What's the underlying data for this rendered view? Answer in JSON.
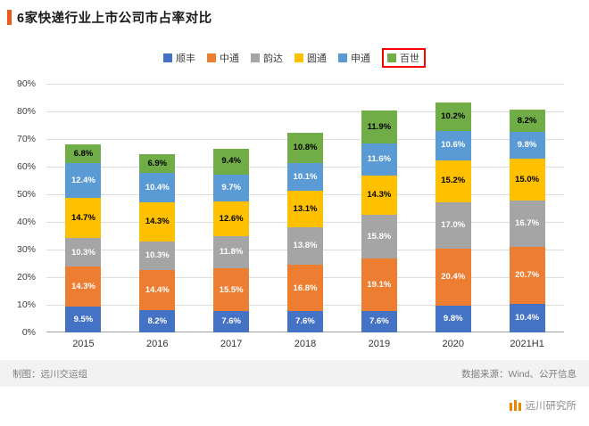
{
  "page": {
    "title": "6家快递行业上市公司市占率对比",
    "accent_color": "#ED5A1C",
    "footer_left": "制图：远川交运组",
    "footer_right": "数据来源：Wind、公开信息",
    "brand_name": "远川研究所",
    "brand_color": "#F08300"
  },
  "chart_data": {
    "type": "bar",
    "stacked": true,
    "title": "6家快递行业上市公司市占率对比",
    "categories": [
      "2015",
      "2016",
      "2017",
      "2018",
      "2019",
      "2020",
      "2021H1"
    ],
    "series": [
      {
        "name": "顺丰",
        "color": "#4472C4",
        "label_color": "#FFFFFF",
        "highlighted": false,
        "values": [
          9.5,
          8.2,
          7.6,
          7.6,
          7.6,
          9.8,
          10.4
        ]
      },
      {
        "name": "中通",
        "color": "#ED7D31",
        "label_color": "#FFFFFF",
        "highlighted": false,
        "values": [
          14.3,
          14.4,
          15.5,
          16.8,
          19.1,
          20.4,
          20.7
        ]
      },
      {
        "name": "韵达",
        "color": "#A5A5A5",
        "label_color": "#FFFFFF",
        "highlighted": false,
        "values": [
          10.3,
          10.3,
          11.8,
          13.8,
          15.8,
          17.0,
          16.7
        ]
      },
      {
        "name": "圆通",
        "color": "#FFC000",
        "label_color": "#000000",
        "highlighted": false,
        "values": [
          14.7,
          14.3,
          12.6,
          13.1,
          14.3,
          15.2,
          15.0
        ]
      },
      {
        "name": "申通",
        "color": "#5B9BD5",
        "label_color": "#FFFFFF",
        "highlighted": false,
        "values": [
          12.4,
          10.4,
          9.7,
          10.1,
          11.6,
          10.6,
          9.8
        ]
      },
      {
        "name": "百世",
        "color": "#70AD47",
        "label_color": "#000000",
        "highlighted": true,
        "values": [
          6.8,
          6.9,
          9.4,
          10.8,
          11.9,
          10.2,
          8.2
        ]
      }
    ],
    "value_suffix": "%",
    "ylim": [
      0,
      90
    ],
    "ytick_step": 10,
    "ytick_labels": [
      "0%",
      "10%",
      "20%",
      "30%",
      "40%",
      "50%",
      "60%",
      "70%",
      "80%",
      "90%"
    ],
    "legend_position": "top",
    "legend_highlight_box_color": "#FF0000",
    "grid": true
  }
}
